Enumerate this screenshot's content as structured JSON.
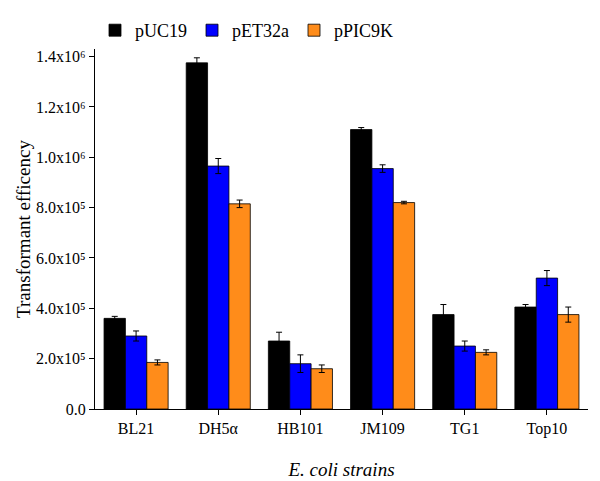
{
  "chart_data": {
    "type": "bar",
    "x_label": "E. coli strains",
    "y_label": "Transformant efficency",
    "categories": [
      "BL21",
      "DH5α",
      "HB101",
      "JM109",
      "TG1",
      "Top10"
    ],
    "series": [
      {
        "name": "pUC19",
        "color": "#000000",
        "values": [
          360000,
          1375000,
          270000,
          1110000,
          375000,
          405000
        ],
        "errors": [
          8000,
          20000,
          35000,
          8000,
          40000,
          10000
        ]
      },
      {
        "name": "pET32a",
        "color": "#0000ff",
        "values": [
          290000,
          965000,
          180000,
          955000,
          250000,
          520000
        ],
        "errors": [
          20000,
          30000,
          35000,
          15000,
          20000,
          30000
        ]
      },
      {
        "name": "pPIC9K",
        "color": "#ff8c1a",
        "values": [
          185000,
          815000,
          160000,
          820000,
          225000,
          375000
        ],
        "errors": [
          10000,
          15000,
          15000,
          5000,
          10000,
          30000
        ]
      }
    ],
    "ylim": [
      0,
      1430000
    ],
    "yticks": [
      {
        "value": 0,
        "label": "0.0"
      },
      {
        "value": 200000,
        "label": "2.0x10⁵"
      },
      {
        "value": 400000,
        "label": "4.0x10⁵"
      },
      {
        "value": 600000,
        "label": "6.0x10⁵"
      },
      {
        "value": 800000,
        "label": "8.0x10⁵"
      },
      {
        "value": 1000000,
        "label": "1.0x10⁶"
      },
      {
        "value": 1200000,
        "label": "1.2x10⁶"
      },
      {
        "value": 1400000,
        "label": "1.4x10⁶"
      }
    ],
    "grid": false,
    "legend": "top"
  }
}
